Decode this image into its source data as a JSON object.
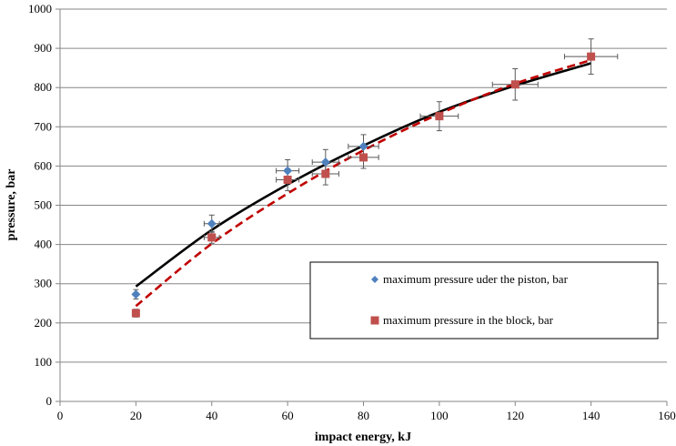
{
  "chart_data": {
    "type": "scatter",
    "xlabel": "impact energy, kJ",
    "ylabel": "pressure, bar",
    "xlim": [
      0,
      160
    ],
    "ylim": [
      0,
      1000
    ],
    "x_ticks": [
      "0",
      "20",
      "40",
      "60",
      "80",
      "100",
      "120",
      "140",
      "160"
    ],
    "y_ticks": [
      "0",
      "100",
      "200",
      "300",
      "400",
      "500",
      "600",
      "700",
      "800",
      "900",
      "1000"
    ],
    "grid": "horizontal",
    "legend_position": "bottom-right",
    "series": [
      {
        "name": "maximum pressure uder the piston, bar",
        "marker": "diamond",
        "color": "#4F81BD",
        "points": [
          {
            "x": 20,
            "y": 273,
            "yerr": 12,
            "xerr": 0
          },
          {
            "x": 40,
            "y": 453,
            "yerr": 22,
            "xerr": 2
          },
          {
            "x": 60,
            "y": 588,
            "yerr": 28,
            "xerr": 3
          },
          {
            "x": 70,
            "y": 610,
            "yerr": 32,
            "xerr": 3.5
          },
          {
            "x": 80,
            "y": 650,
            "yerr": 30,
            "xerr": 4
          }
        ]
      },
      {
        "name": "maximum pressure in the block, bar",
        "marker": "square",
        "color": "#C0504D",
        "points": [
          {
            "x": 20,
            "y": 225,
            "yerr": 10,
            "xerr": 0
          },
          {
            "x": 40,
            "y": 418,
            "yerr": 15,
            "xerr": 2
          },
          {
            "x": 60,
            "y": 565,
            "yerr": 28,
            "xerr": 3
          },
          {
            "x": 70,
            "y": 580,
            "yerr": 28,
            "xerr": 3.5
          },
          {
            "x": 80,
            "y": 622,
            "yerr": 28,
            "xerr": 4
          },
          {
            "x": 100,
            "y": 727,
            "yerr": 37,
            "xerr": 5
          },
          {
            "x": 120,
            "y": 808,
            "yerr": 40,
            "xerr": 6
          },
          {
            "x": 140,
            "y": 879,
            "yerr": 45,
            "xerr": 7
          }
        ]
      }
    ],
    "trendlines": [
      {
        "series": "maximum pressure uder the piston, bar",
        "style": "solid",
        "color": "#000000",
        "x": [
          20,
          40,
          60,
          80,
          100,
          120,
          140
        ],
        "y": [
          293,
          437,
          553,
          652,
          738,
          805,
          862
        ]
      },
      {
        "series": "maximum pressure in the block, bar",
        "style": "dashed",
        "color": "#C00000",
        "x": [
          20,
          40,
          60,
          80,
          100,
          120,
          140
        ],
        "y": [
          243,
          402,
          530,
          640,
          733,
          810,
          870
        ]
      }
    ]
  }
}
